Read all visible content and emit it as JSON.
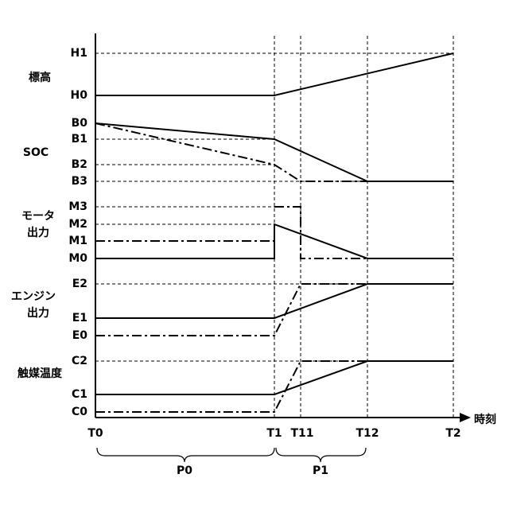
{
  "rows": [
    {
      "label_lines": [
        "標高"
      ],
      "levels": [
        "H1",
        "H0"
      ]
    },
    {
      "label_lines": [
        "SOC"
      ],
      "levels": [
        "B0",
        "B1",
        "B2",
        "B3"
      ]
    },
    {
      "label_lines": [
        "モータ",
        "出力"
      ],
      "levels": [
        "M3",
        "M2",
        "M1",
        "M0"
      ]
    },
    {
      "label_lines": [
        "エンジン",
        "出力"
      ],
      "levels": [
        "E2",
        "E1",
        "E0"
      ]
    },
    {
      "label_lines": [
        "触媒温度"
      ],
      "levels": [
        "C2",
        "C1",
        "C0"
      ]
    }
  ],
  "time_axis": {
    "label": "時刻",
    "ticks": [
      "T0",
      "T1",
      "T11",
      "T12",
      "T2"
    ]
  },
  "periods": [
    "P0",
    "P1"
  ]
}
